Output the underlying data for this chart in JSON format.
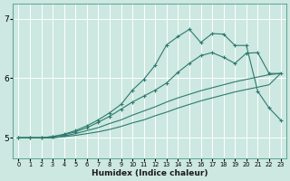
{
  "xlabel": "Humidex (Indice chaleur)",
  "ylabel": "",
  "background_color": "#cce8e0",
  "grid_color": "#ffffff",
  "line_color": "#2d7a6e",
  "xlim": [
    -0.5,
    23.5
  ],
  "ylim": [
    4.65,
    7.25
  ],
  "yticks": [
    5,
    6,
    7
  ],
  "xticks": [
    0,
    1,
    2,
    3,
    4,
    5,
    6,
    7,
    8,
    9,
    10,
    11,
    12,
    13,
    14,
    15,
    16,
    17,
    18,
    19,
    20,
    21,
    22,
    23
  ],
  "line1_x": [
    0,
    1,
    2,
    3,
    4,
    5,
    6,
    7,
    8,
    9,
    10,
    11,
    12,
    13,
    14,
    15,
    16,
    17,
    18,
    19,
    20,
    21,
    22,
    23
  ],
  "line1_y": [
    5.0,
    5.0,
    5.0,
    5.0,
    5.03,
    5.07,
    5.12,
    5.17,
    5.24,
    5.3,
    5.38,
    5.45,
    5.52,
    5.6,
    5.67,
    5.73,
    5.79,
    5.84,
    5.89,
    5.94,
    5.98,
    6.02,
    6.06,
    6.08
  ],
  "line2_x": [
    0,
    1,
    2,
    3,
    4,
    5,
    6,
    7,
    8,
    9,
    10,
    11,
    12,
    13,
    14,
    15,
    16,
    17,
    18,
    19,
    20,
    21,
    22,
    23
  ],
  "line2_y": [
    5.0,
    5.0,
    5.0,
    5.02,
    5.05,
    5.1,
    5.17,
    5.26,
    5.36,
    5.48,
    5.6,
    5.7,
    5.8,
    5.92,
    6.1,
    6.25,
    6.38,
    6.43,
    6.35,
    6.25,
    6.42,
    6.43,
    6.08,
    6.08
  ],
  "line3_x": [
    0,
    1,
    2,
    3,
    4,
    5,
    6,
    7,
    8,
    9,
    10,
    11,
    12,
    13,
    14,
    15,
    16,
    17,
    18,
    19,
    20,
    21,
    22,
    23
  ],
  "line3_y": [
    5.0,
    5.0,
    5.0,
    5.02,
    5.06,
    5.12,
    5.2,
    5.3,
    5.42,
    5.56,
    5.8,
    5.98,
    6.22,
    6.56,
    6.7,
    6.82,
    6.6,
    6.75,
    6.74,
    6.55,
    6.55,
    5.78,
    5.5,
    5.3
  ],
  "line4_x": [
    0,
    1,
    2,
    3,
    4,
    5,
    6,
    7,
    8,
    9,
    10,
    11,
    12,
    13,
    14,
    15,
    16,
    17,
    18,
    19,
    20,
    21,
    22,
    23
  ],
  "line4_y": [
    5.0,
    5.0,
    5.0,
    5.0,
    5.02,
    5.04,
    5.07,
    5.1,
    5.14,
    5.19,
    5.25,
    5.3,
    5.37,
    5.43,
    5.5,
    5.56,
    5.62,
    5.67,
    5.72,
    5.77,
    5.81,
    5.85,
    5.89,
    6.08
  ]
}
